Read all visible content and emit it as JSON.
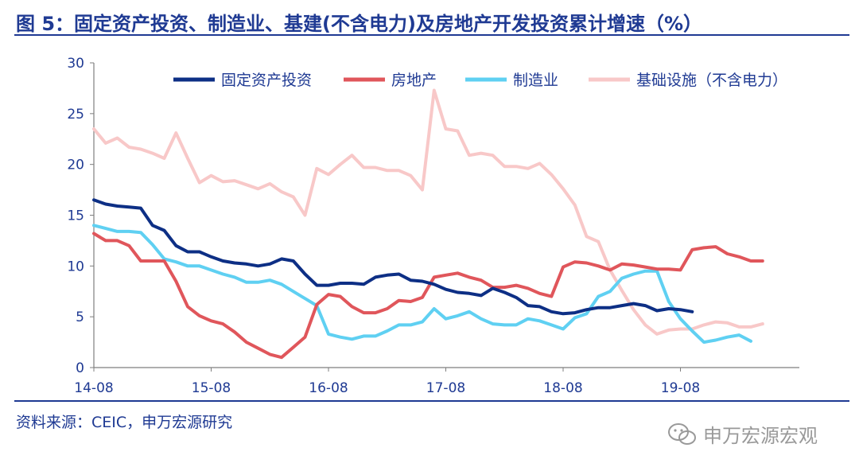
{
  "title": "图 5：固定资产投资、制造业、基建(不含电力)及房地产开发投资累计增速（%）",
  "source": "资料来源：CEIC，申万宏源研究",
  "watermark": "申万宏源宏观",
  "colors": {
    "accent": "#1f3a93",
    "fai": "#0d2f85",
    "realestate": "#e0565b",
    "manufacturing": "#5fd0f2",
    "infrastructure": "#f8c8c8"
  },
  "chart_data": {
    "type": "line",
    "ylim": [
      0,
      30
    ],
    "yticks": [
      0,
      5,
      10,
      15,
      20,
      25,
      30
    ],
    "xtick_labels": [
      "14-08",
      "15-08",
      "16-08",
      "17-08",
      "18-08",
      "19-08"
    ],
    "xtick_index": [
      0,
      10,
      20,
      30,
      40,
      50
    ],
    "legend_position": "top",
    "x_start": "2014-08",
    "series": [
      {
        "name": "固定资产投资",
        "color": "#0d2f85",
        "values": [
          16.5,
          16.1,
          15.9,
          15.8,
          15.7,
          14.0,
          13.5,
          12.0,
          11.4,
          11.4,
          10.9,
          10.5,
          10.3,
          10.2,
          10.0,
          10.2,
          10.7,
          10.5,
          9.2,
          8.1,
          8.1,
          8.3,
          8.3,
          8.2,
          8.9,
          9.1,
          9.2,
          8.6,
          8.5,
          8.2,
          7.7,
          7.4,
          7.3,
          7.1,
          7.8,
          7.4,
          6.9,
          6.1,
          6.0,
          5.5,
          5.3,
          5.4,
          5.7,
          5.9,
          5.9,
          6.1,
          6.3,
          6.1,
          5.6,
          5.8,
          5.7,
          5.5
        ]
      },
      {
        "name": "房地产",
        "color": "#e0565b",
        "values": [
          13.2,
          12.5,
          12.5,
          12.0,
          10.5,
          10.5,
          10.5,
          8.5,
          6.0,
          5.1,
          4.6,
          4.3,
          3.5,
          2.5,
          1.9,
          1.3,
          1.0,
          2.0,
          3.0,
          6.2,
          7.2,
          7.0,
          6.0,
          5.4,
          5.4,
          5.8,
          6.6,
          6.5,
          6.9,
          8.9,
          9.1,
          9.3,
          8.9,
          8.6,
          7.9,
          7.9,
          8.1,
          7.8,
          7.3,
          7.0,
          9.9,
          10.4,
          10.3,
          10.0,
          9.6,
          10.2,
          10.1,
          9.9,
          9.7,
          9.7,
          9.6,
          11.6,
          11.8,
          11.9,
          11.2,
          10.9,
          10.5,
          10.5
        ]
      },
      {
        "name": "制造业",
        "color": "#5fd0f2",
        "values": [
          14.0,
          13.7,
          13.4,
          13.4,
          13.3,
          12.1,
          10.7,
          10.4,
          10.0,
          10.0,
          9.6,
          9.2,
          8.9,
          8.4,
          8.4,
          8.6,
          8.2,
          7.5,
          6.8,
          6.1,
          3.3,
          3.0,
          2.8,
          3.1,
          3.1,
          3.6,
          4.2,
          4.2,
          4.5,
          5.8,
          4.8,
          5.1,
          5.5,
          4.8,
          4.3,
          4.2,
          4.2,
          4.8,
          4.6,
          4.2,
          3.8,
          4.9,
          5.3,
          7.0,
          7.5,
          8.8,
          9.2,
          9.5,
          9.5,
          6.5,
          4.8,
          3.6,
          2.5,
          2.7,
          3.0,
          3.2,
          2.6
        ]
      },
      {
        "name": "基础设施（不含电力）",
        "color": "#f8c8c8",
        "values": [
          23.5,
          22.1,
          22.6,
          21.7,
          21.5,
          21.1,
          20.6,
          23.1,
          20.6,
          18.2,
          18.9,
          18.3,
          18.4,
          18.0,
          17.6,
          18.1,
          17.3,
          16.8,
          15.0,
          19.6,
          19.0,
          20.0,
          20.9,
          19.7,
          19.7,
          19.4,
          19.4,
          18.9,
          17.5,
          27.3,
          23.5,
          23.3,
          20.9,
          21.1,
          20.9,
          19.8,
          19.8,
          19.6,
          20.1,
          19.0,
          17.6,
          16.0,
          12.9,
          12.4,
          9.6,
          7.6,
          5.7,
          4.2,
          3.3,
          3.7,
          3.8,
          3.8,
          4.2,
          4.5,
          4.4,
          4.0,
          4.0,
          4.3
        ]
      }
    ]
  }
}
